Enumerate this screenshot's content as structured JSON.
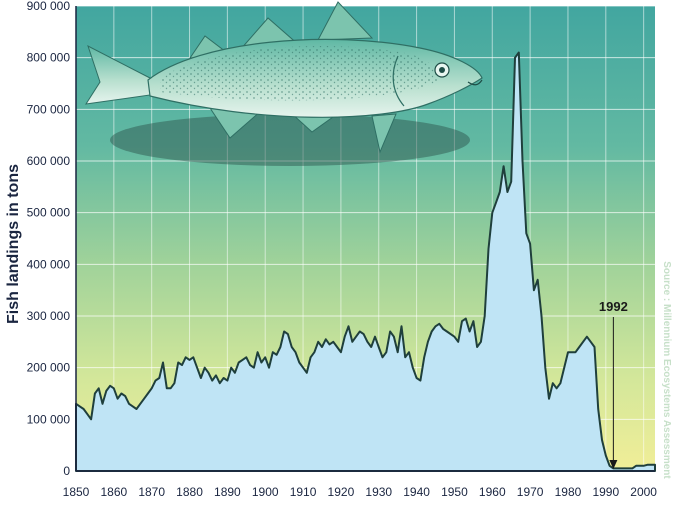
{
  "chart_data": {
    "type": "area",
    "ylabel": "Fish landings in tons",
    "xlabel": "",
    "title": "",
    "xlim": [
      1850,
      2003
    ],
    "ylim": [
      0,
      900000
    ],
    "x_ticks": [
      1850,
      1860,
      1870,
      1880,
      1890,
      1900,
      1910,
      1920,
      1930,
      1940,
      1950,
      1960,
      1970,
      1980,
      1990,
      2000
    ],
    "y_ticks": [
      {
        "value": 0,
        "label": "0"
      },
      {
        "value": 100000,
        "label": "100 000"
      },
      {
        "value": 200000,
        "label": "200 000"
      },
      {
        "value": 300000,
        "label": "300 000"
      },
      {
        "value": 400000,
        "label": "400 000"
      },
      {
        "value": 500000,
        "label": "500 000"
      },
      {
        "value": 600000,
        "label": "600 000"
      },
      {
        "value": 700000,
        "label": "700 000"
      },
      {
        "value": 800000,
        "label": "800 000"
      },
      {
        "value": 900000,
        "label": "900 000"
      }
    ],
    "grid": true,
    "annotation": {
      "label": "1992",
      "x": 1992,
      "y": 0
    },
    "source": "Source : Millennium Ecosystems Assessment",
    "colors": {
      "fill": "#bfe4f5",
      "line": "#1f3f3c",
      "arrow": "#1a1a1a"
    },
    "x": [
      1850,
      1851,
      1852,
      1853,
      1854,
      1855,
      1856,
      1857,
      1858,
      1859,
      1860,
      1861,
      1862,
      1863,
      1864,
      1865,
      1866,
      1867,
      1868,
      1869,
      1870,
      1871,
      1872,
      1873,
      1874,
      1875,
      1876,
      1877,
      1878,
      1879,
      1880,
      1881,
      1882,
      1883,
      1884,
      1885,
      1886,
      1887,
      1888,
      1889,
      1890,
      1891,
      1892,
      1893,
      1894,
      1895,
      1896,
      1897,
      1898,
      1899,
      1900,
      1901,
      1902,
      1903,
      1904,
      1905,
      1906,
      1907,
      1908,
      1909,
      1910,
      1911,
      1912,
      1913,
      1914,
      1915,
      1916,
      1917,
      1918,
      1919,
      1920,
      1921,
      1922,
      1923,
      1924,
      1925,
      1926,
      1927,
      1928,
      1929,
      1930,
      1931,
      1932,
      1933,
      1934,
      1935,
      1936,
      1937,
      1938,
      1939,
      1940,
      1941,
      1942,
      1943,
      1944,
      1945,
      1946,
      1947,
      1948,
      1949,
      1950,
      1951,
      1952,
      1953,
      1954,
      1955,
      1956,
      1957,
      1958,
      1959,
      1960,
      1961,
      1962,
      1963,
      1964,
      1965,
      1966,
      1967,
      1968,
      1969,
      1970,
      1971,
      1972,
      1973,
      1974,
      1975,
      1976,
      1977,
      1978,
      1979,
      1980,
      1981,
      1982,
      1983,
      1984,
      1985,
      1986,
      1987,
      1988,
      1989,
      1990,
      1991,
      1992,
      1993,
      1994,
      1995,
      1996,
      1997,
      1998,
      1999,
      2000,
      2001,
      2002,
      2003
    ],
    "values": [
      130000,
      125000,
      120000,
      110000,
      100000,
      150000,
      160000,
      130000,
      155000,
      165000,
      160000,
      140000,
      150000,
      145000,
      130000,
      125000,
      120000,
      130000,
      140000,
      150000,
      160000,
      175000,
      180000,
      210000,
      160000,
      160000,
      170000,
      210000,
      205000,
      220000,
      215000,
      220000,
      200000,
      180000,
      200000,
      190000,
      175000,
      185000,
      170000,
      180000,
      175000,
      200000,
      190000,
      210000,
      215000,
      220000,
      205000,
      200000,
      230000,
      210000,
      220000,
      200000,
      230000,
      225000,
      240000,
      270000,
      265000,
      240000,
      230000,
      210000,
      200000,
      190000,
      220000,
      230000,
      250000,
      240000,
      255000,
      245000,
      250000,
      240000,
      230000,
      260000,
      280000,
      250000,
      260000,
      270000,
      265000,
      250000,
      240000,
      260000,
      240000,
      220000,
      230000,
      270000,
      260000,
      230000,
      280000,
      220000,
      230000,
      200000,
      180000,
      175000,
      220000,
      250000,
      270000,
      280000,
      285000,
      275000,
      270000,
      265000,
      260000,
      250000,
      290000,
      295000,
      270000,
      290000,
      240000,
      250000,
      300000,
      430000,
      500000,
      520000,
      540000,
      590000,
      540000,
      560000,
      800000,
      810000,
      600000,
      460000,
      440000,
      350000,
      370000,
      300000,
      200000,
      140000,
      170000,
      160000,
      170000,
      200000,
      230000,
      230000,
      230000,
      240000,
      250000,
      260000,
      250000,
      240000,
      120000,
      60000,
      30000,
      10000,
      5000,
      5000,
      5000,
      5000,
      5000,
      5000,
      10000,
      10000,
      10000,
      12000,
      12000,
      12000
    ]
  }
}
